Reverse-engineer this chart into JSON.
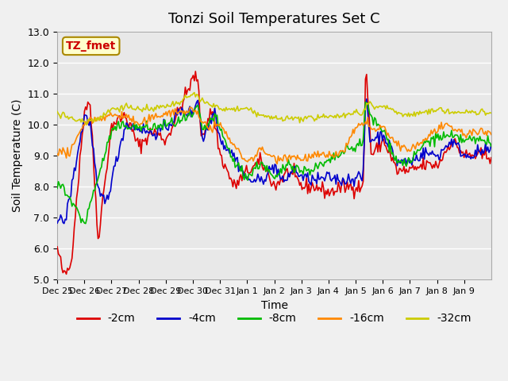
{
  "title": "Tonzi Soil Temperatures Set C",
  "xlabel": "Time",
  "ylabel": "Soil Temperature (C)",
  "annotation": "TZ_fmet",
  "ylim": [
    5.0,
    13.0
  ],
  "yticks": [
    5.0,
    6.0,
    7.0,
    8.0,
    9.0,
    10.0,
    11.0,
    12.0,
    13.0
  ],
  "xtick_labels": [
    "Dec 25",
    "Dec 26",
    "Dec 27",
    "Dec 28",
    "Dec 29",
    "Dec 30",
    "Dec 31",
    "Jan 1",
    "Jan 2",
    "Jan 3",
    "Jan 4",
    "Jan 5",
    "Jan 6",
    "Jan 7",
    "Jan 8",
    "Jan 9"
  ],
  "series_colors": [
    "#dd0000",
    "#0000cc",
    "#00bb00",
    "#ff8800",
    "#cccc00"
  ],
  "series_labels": [
    "-2cm",
    "-4cm",
    "-8cm",
    "-16cm",
    "-32cm"
  ],
  "background_color": "#e8e8e8",
  "grid_color": "#ffffff",
  "title_fontsize": 13,
  "label_fontsize": 10,
  "tick_fontsize": 9,
  "legend_fontsize": 10,
  "n_days": 16,
  "pts_per_day": 24
}
